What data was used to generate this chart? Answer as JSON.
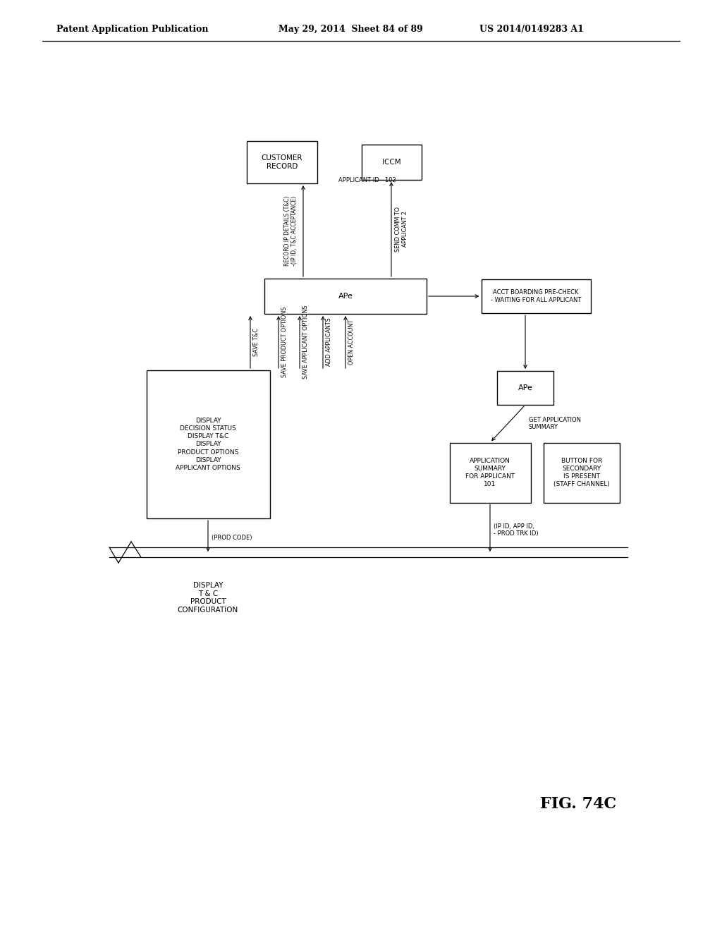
{
  "title_left": "Patent Application Publication",
  "title_mid": "May 29, 2014  Sheet 84 of 89",
  "title_right": "US 2014/0149283 A1",
  "fig_label": "FIG. 74C",
  "background": "#ffffff"
}
